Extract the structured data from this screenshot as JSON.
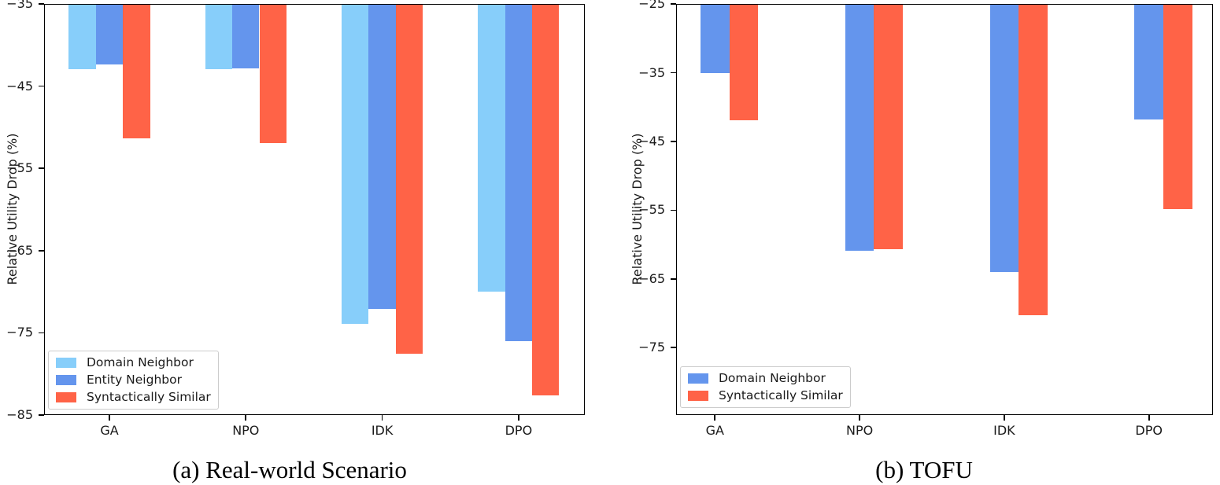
{
  "figure": {
    "background": "#ffffff",
    "text_color": "#1a1a1a"
  },
  "chart_data": [
    {
      "type": "bar",
      "panel": "a",
      "caption": "(a) Real-world Scenario",
      "title": "",
      "xlabel": "",
      "ylabel": "Relative Utility Drop (%)",
      "categories": [
        "GA",
        "NPO",
        "IDK",
        "DPO"
      ],
      "series": [
        {
          "name": "Domain Neighbor",
          "color": "#87CEFA",
          "values": [
            -42.9,
            -42.9,
            -73.9,
            -70.0
          ]
        },
        {
          "name": "Entity Neighbor",
          "color": "#6495ED",
          "values": [
            -42.4,
            -42.8,
            -72.1,
            -76.0
          ]
        },
        {
          "name": "Syntactically Similar",
          "color": "#FF6347",
          "values": [
            -51.3,
            -51.9,
            -77.5,
            -82.6
          ]
        }
      ],
      "ylim": [
        -85,
        -35
      ],
      "yticks": [
        -35,
        -45,
        -55,
        -65,
        -75,
        -85
      ],
      "ytick_labels": [
        "−35",
        "−45",
        "−55",
        "−65",
        "−75",
        "−85"
      ],
      "grid": false,
      "legend_position": "lower left",
      "bars_clipped_at_top": true
    },
    {
      "type": "bar",
      "panel": "b",
      "caption": "(b) TOFU",
      "title": "",
      "xlabel": "",
      "ylabel": "Relative Utility Drop (%)",
      "categories": [
        "GA",
        "NPO",
        "IDK",
        "DPO"
      ],
      "series": [
        {
          "name": "Domain Neighbor",
          "color": "#6495ED",
          "values": [
            -35.1,
            -60.9,
            -64.0,
            -41.8
          ]
        },
        {
          "name": "Syntactically Similar",
          "color": "#FF6347",
          "values": [
            -41.9,
            -60.7,
            -70.3,
            -54.8
          ]
        }
      ],
      "ylim": [
        -84.8,
        -25
      ],
      "yticks": [
        -25,
        -35,
        -45,
        -55,
        -65,
        -75
      ],
      "ytick_labels": [
        "−25",
        "−35",
        "−45",
        "−55",
        "−65",
        "−75"
      ],
      "grid": false,
      "legend_position": "lower left",
      "bars_clipped_at_top": true
    }
  ]
}
